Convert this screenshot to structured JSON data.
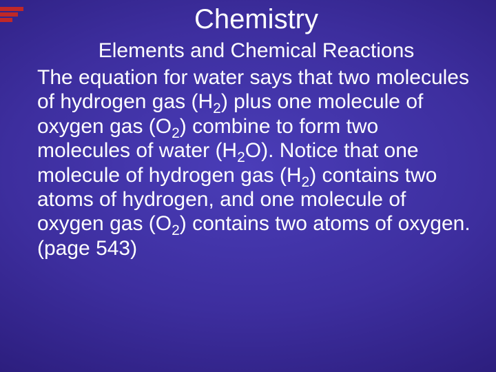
{
  "slide": {
    "title": "Chemistry",
    "subtitle": "Elements and Chemical Reactions",
    "body_segments": [
      "The equation for water says that two molecules of hydrogen gas (H",
      "2",
      ") plus one molecule of oxygen gas (O",
      "2",
      ") combine to form two molecules of water (H",
      "2",
      "O). Notice that one molecule of hydrogen gas (H",
      "2",
      ") contains two atoms of hydrogen, and one molecule of oxygen gas (O",
      "2",
      ") contains two atoms of oxygen. (page 543)"
    ]
  },
  "style": {
    "background_gradient_center": "#4a3db8",
    "background_gradient_mid": "#2a1c7a",
    "background_gradient_edge": "#1a0f52",
    "text_color": "#ffffff",
    "accent_bar_color": "#c02828",
    "title_fontsize": 40,
    "subtitle_fontsize": 30,
    "body_fontsize": 30,
    "accent_bar_widths": [
      34,
      26,
      18
    ]
  }
}
